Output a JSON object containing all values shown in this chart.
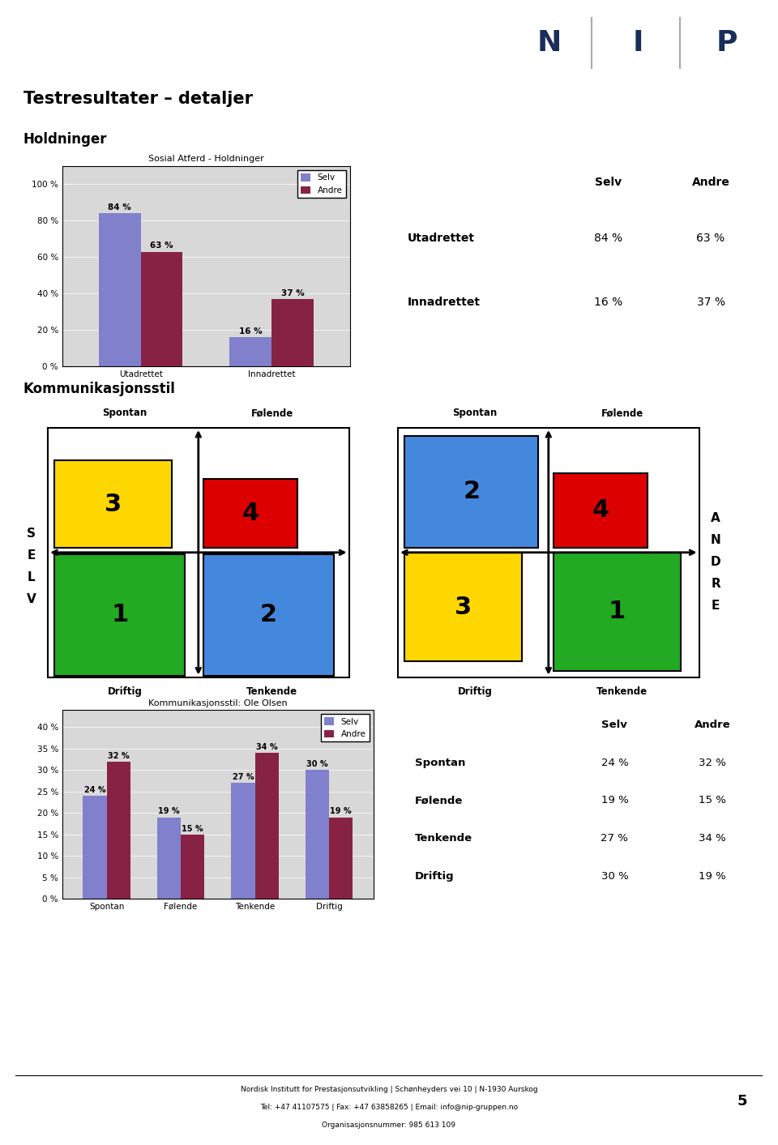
{
  "title": "Testresultater – detaljer",
  "section1_title": "Holdninger",
  "bar_chart_title": "Sosial Atferd - Holdninger",
  "bar_categories": [
    "Utadrettet",
    "Innadrettet"
  ],
  "bar_selv": [
    84,
    16
  ],
  "bar_andre": [
    63,
    37
  ],
  "bar_selv_color": "#8080CC",
  "bar_andre_color": "#882244",
  "bar_ylabel_ticks": [
    "0 %",
    "20 %",
    "40 %",
    "60 %",
    "80 %",
    "100 %"
  ],
  "bar_yticks": [
    0,
    20,
    40,
    60,
    80,
    100
  ],
  "table1_rows": [
    "Utadrettet",
    "Innadrettet"
  ],
  "table1_selv": [
    "84 %",
    "16 %"
  ],
  "table1_andre": [
    "63 %",
    "37 %"
  ],
  "section2_title": "Kommunikasjonsstil",
  "quad_labels_top": [
    "Spontan",
    "Følende"
  ],
  "quad_labels_bottom": [
    "Driftig",
    "Tenkende"
  ],
  "bar2_title": "Kommunikasjonsstil: Ole Olsen",
  "bar2_categories": [
    "Spontan",
    "Følende",
    "Tenkende",
    "Driftig"
  ],
  "bar2_selv": [
    24,
    19,
    27,
    30
  ],
  "bar2_andre": [
    32,
    15,
    34,
    19
  ],
  "bar2_selv_color": "#8080CC",
  "bar2_andre_color": "#882244",
  "bar2_yticks": [
    0,
    5,
    10,
    15,
    20,
    25,
    30,
    35,
    40
  ],
  "bar2_ylabel_ticks": [
    "0 %",
    "5 %",
    "10 %",
    "15 %",
    "20 %",
    "25 %",
    "30 %",
    "35 %",
    "40 %"
  ],
  "table2_rows": [
    "Spontan",
    "Følende",
    "Tenkende",
    "Driftig"
  ],
  "table2_selv": [
    "24 %",
    "19 %",
    "27 %",
    "30 %"
  ],
  "table2_andre": [
    "32 %",
    "15 %",
    "34 %",
    "19 %"
  ],
  "footer": "Nordisk Institutt for Prestasjonsutvikling | Schønheyders vei 10 | N-1930 Aurskog\nTel: +47 41107575 | Fax: +47 63858265 | Email: info@nip-gruppen.no\nOrganisasjonsnummer: 985 613 109",
  "page_num": "5",
  "nip_logo_color": "#1A2E5A",
  "bg_color": "#FFFFFF"
}
